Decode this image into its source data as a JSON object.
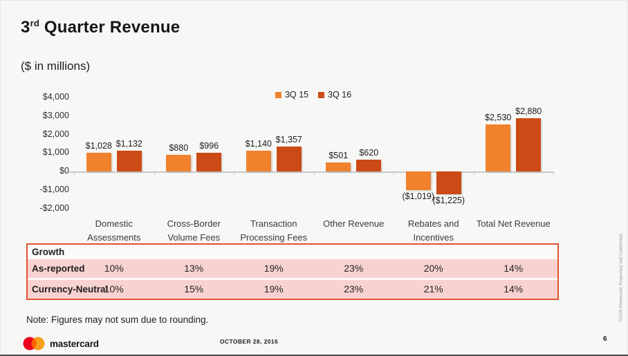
{
  "header": {
    "title_number": "3",
    "title_ordinal": "rd",
    "title_text": " Quarter Revenue",
    "subtitle": "($ in millions)"
  },
  "chart_data": {
    "type": "bar",
    "title": "3rd Quarter Revenue ($ in millions)",
    "categories": [
      "Domestic Assessments",
      "Cross-Border Volume Fees",
      "Transaction Processing Fees",
      "Other Revenue",
      "Rebates and Incentives",
      "Total Net Revenue"
    ],
    "series": [
      {
        "name": "3Q 15",
        "color": "#f0822e",
        "values": [
          1028,
          880,
          1140,
          501,
          -1019,
          2530
        ],
        "labels": [
          "$1,028",
          "$880",
          "$1,140",
          "$501",
          "($1,019)",
          "$2,530"
        ]
      },
      {
        "name": "3Q 16",
        "color": "#cc4a15",
        "values": [
          1132,
          996,
          1357,
          620,
          -1225,
          2880
        ],
        "labels": [
          "$1,132",
          "$996",
          "$1,357",
          "$620",
          "($1,225)",
          "$2,880"
        ]
      }
    ],
    "y_axis": {
      "ticks": [
        4000,
        3000,
        2000,
        1000,
        0,
        -1000,
        -2000
      ],
      "tick_labels": [
        "$4,000",
        "$3,000",
        "$2,000",
        "$1,000",
        "$0",
        "-$1,000",
        "-$2,000"
      ],
      "range": [
        -2000,
        4000
      ]
    },
    "legend_position": "top-center",
    "grid": false
  },
  "growth_table": {
    "header": "Growth",
    "columns": [
      "Domestic Assessments",
      "Cross-Border Volume Fees",
      "Transaction Processing Fees",
      "Other Revenue",
      "Rebates and Incentives",
      "Total Net Revenue"
    ],
    "rows": [
      {
        "label": "As-reported",
        "values": [
          "10%",
          "13%",
          "19%",
          "23%",
          "20%",
          "14%"
        ]
      },
      {
        "label": "Currency-Neutral",
        "values": [
          "10%",
          "15%",
          "19%",
          "23%",
          "21%",
          "14%"
        ]
      }
    ],
    "border_color": "#e0532d",
    "row_bg": "#f8d2d1"
  },
  "note": "Note: Figures may not sum due to rounding.",
  "footer": {
    "brand": "mastercard",
    "date": "OCTOBER 28, 2016",
    "page_number": "6",
    "copyright": "©2016 Mastercard. Proprietary and Confidential.",
    "logo_colors": {
      "left_circle": "#eb001b",
      "right_circle": "#f79e1b",
      "overlap": "#ff5f00"
    }
  }
}
